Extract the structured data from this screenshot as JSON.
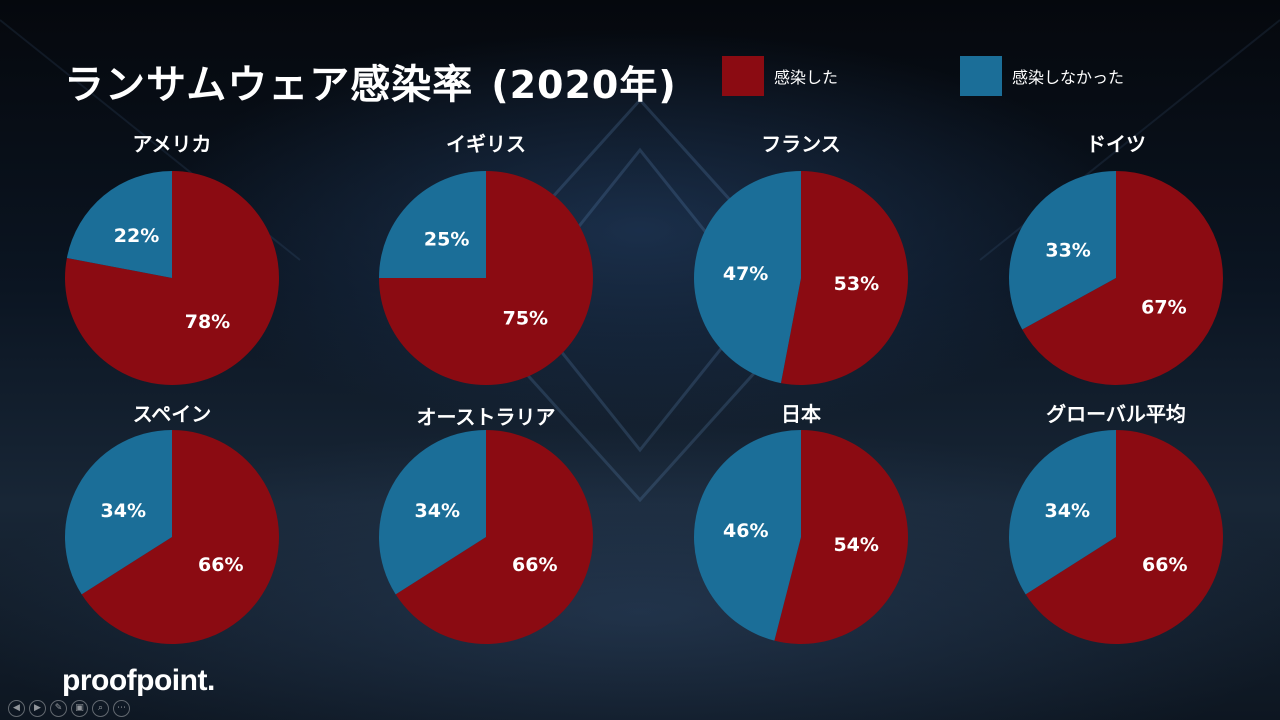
{
  "title": "ランサムウェア感染率",
  "title_year": "(2020年)",
  "legend": [
    {
      "label": "感染した",
      "color": "#8b0b12"
    },
    {
      "label": "感染しなかった",
      "color": "#1b6e98"
    }
  ],
  "logo_text": "proofpoint.",
  "toolbar_icons": [
    "prev-icon",
    "next-icon",
    "pen-icon",
    "slides-icon",
    "zoom-icon",
    "more-icon"
  ],
  "toolbar_glyphs": [
    "◀",
    "▶",
    "✎",
    "▣",
    "⌕",
    "⋯"
  ],
  "chart_data": [
    {
      "type": "pie",
      "title": "アメリカ",
      "categories": [
        "感染した",
        "感染しなかった"
      ],
      "values": [
        78,
        22
      ],
      "labels": [
        "78%",
        "22%"
      ]
    },
    {
      "type": "pie",
      "title": "イギリス",
      "categories": [
        "感染した",
        "感染しなかった"
      ],
      "values": [
        75,
        25
      ],
      "labels": [
        "75%",
        "25%"
      ]
    },
    {
      "type": "pie",
      "title": "フランス",
      "categories": [
        "感染した",
        "感染しなかった"
      ],
      "values": [
        53,
        47
      ],
      "labels": [
        "53%",
        "47%"
      ]
    },
    {
      "type": "pie",
      "title": "ドイツ",
      "categories": [
        "感染した",
        "感染しなかった"
      ],
      "values": [
        67,
        33
      ],
      "labels": [
        "67%",
        "33%"
      ]
    },
    {
      "type": "pie",
      "title": "スペイン",
      "categories": [
        "感染した",
        "感染しなかった"
      ],
      "values": [
        66,
        34
      ],
      "labels": [
        "66%",
        "34%"
      ]
    },
    {
      "type": "pie",
      "title": "オーストラリア",
      "categories": [
        "感染した",
        "感染しなかった"
      ],
      "values": [
        66,
        34
      ],
      "labels": [
        "66%",
        "34%"
      ]
    },
    {
      "type": "pie",
      "title": "日本",
      "categories": [
        "感染した",
        "感染しなかった"
      ],
      "values": [
        54,
        46
      ],
      "labels": [
        "54%",
        "46%"
      ]
    },
    {
      "type": "pie",
      "title": "グローバル平均",
      "categories": [
        "感染した",
        "感染しなかった"
      ],
      "values": [
        66,
        34
      ],
      "labels": [
        "66%",
        "34%"
      ]
    }
  ]
}
